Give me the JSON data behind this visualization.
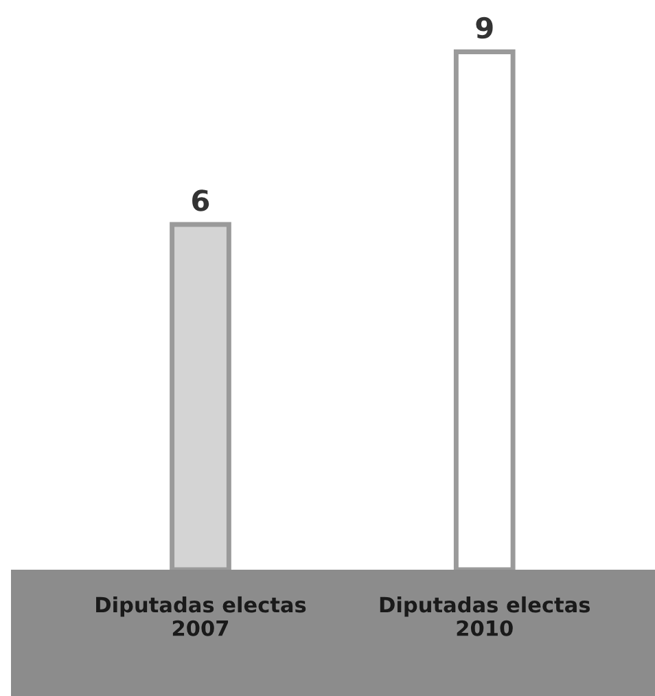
{
  "chart_data": {
    "type": "bar",
    "categories": [
      "Diputadas electas\n2007",
      "Diputadas electas\n2010"
    ],
    "values": [
      6,
      9
    ],
    "colors": [
      "#d4d4d4",
      "#ffffff"
    ],
    "data_labels": true
  }
}
